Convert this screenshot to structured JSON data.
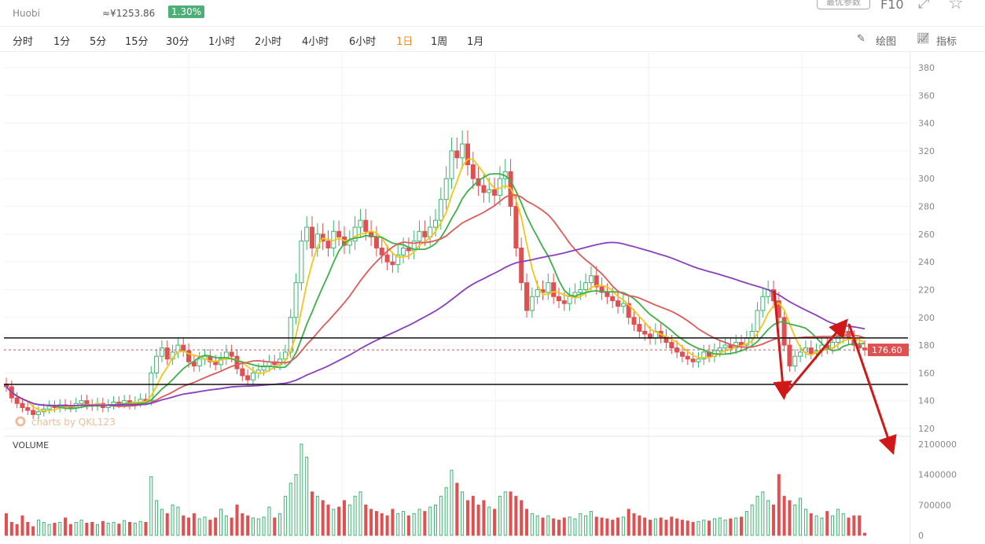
{
  "header": {
    "exchange": "Huobi",
    "cny_price": "≈¥1253.86",
    "change": "1.30%",
    "optimal_params": "最优参数",
    "f10": "F10"
  },
  "toolbar": {
    "tabs": [
      "分时",
      "1分",
      "5分",
      "15分",
      "30分",
      "1小时",
      "2小时",
      "4小时",
      "6小时",
      "1日",
      "1周",
      "1月"
    ],
    "active": "1日",
    "draw": "绘图",
    "indicator": "指标"
  },
  "chart": {
    "watermark": "charts by QKL123",
    "volume_label": "VOLUME",
    "last_price": "176.60",
    "price_ticks": [
      120,
      140,
      160,
      180,
      200,
      220,
      240,
      260,
      280,
      300,
      320,
      340,
      360,
      380
    ],
    "volume_ticks": [
      "0",
      "700000",
      "1400000",
      "2100000"
    ],
    "colors": {
      "up": "#3cb371",
      "down": "#e05050",
      "ma5": "#f5c518",
      "ma10": "#3cb04a",
      "ma20": "#e05a5a",
      "ma60": "#8a3fc0",
      "annotation": "#d01818"
    },
    "support_resistance": [
      185.2,
      151.7
    ],
    "closes": [
      150,
      142,
      138,
      135,
      133,
      130,
      132,
      134,
      136,
      135,
      137,
      136,
      135,
      138,
      140,
      137,
      136,
      138,
      135,
      137,
      139,
      138,
      140,
      137,
      139,
      141,
      140,
      160,
      172,
      178,
      170,
      175,
      180,
      176,
      168,
      165,
      170,
      172,
      168,
      166,
      170,
      175,
      172,
      163,
      158,
      155,
      160,
      162,
      165,
      168,
      166,
      170,
      175,
      200,
      225,
      255,
      265,
      250,
      260,
      255,
      250,
      262,
      258,
      252,
      255,
      265,
      270,
      262,
      258,
      250,
      245,
      240,
      238,
      245,
      250,
      248,
      255,
      262,
      258,
      265,
      270,
      285,
      300,
      320,
      315,
      325,
      310,
      300,
      295,
      290,
      292,
      288,
      300,
      305,
      280,
      250,
      225,
      205,
      215,
      220,
      218,
      225,
      215,
      212,
      210,
      215,
      218,
      220,
      225,
      230,
      222,
      218,
      215,
      212,
      208,
      210,
      200,
      195,
      190,
      188,
      185,
      190,
      186,
      182,
      178,
      175,
      172,
      170,
      168,
      170,
      175,
      172,
      176,
      178,
      180,
      178,
      182,
      180,
      185,
      190,
      205,
      215,
      220,
      212,
      200,
      180,
      165,
      172,
      175,
      178,
      174,
      176,
      180,
      178,
      182,
      186,
      190,
      185,
      180,
      178,
      176.6
    ],
    "volumes": [
      500000,
      300000,
      250000,
      450000,
      300000,
      200000,
      350000,
      300000,
      250000,
      280000,
      300000,
      400000,
      250000,
      300000,
      350000,
      280000,
      300000,
      250000,
      320000,
      280000,
      300000,
      260000,
      340000,
      300000,
      280000,
      320000,
      300000,
      1350000,
      800000,
      600000,
      500000,
      700000,
      650000,
      450000,
      400000,
      500000,
      380000,
      420000,
      350000,
      400000,
      600000,
      450000,
      400000,
      700000,
      500000,
      450000,
      400000,
      380000,
      420000,
      650000,
      400000,
      500000,
      900000,
      1200000,
      1400000,
      2100000,
      1800000,
      1000000,
      900000,
      800000,
      700000,
      600000,
      650000,
      800000,
      700000,
      900000,
      1000000,
      700000,
      600000,
      550000,
      500000,
      450000,
      600000,
      500000,
      550000,
      450000,
      500000,
      600000,
      550000,
      650000,
      700000,
      900000,
      1100000,
      1500000,
      1200000,
      1000000,
      800000,
      900000,
      700000,
      800000,
      650000,
      600000,
      900000,
      1000000,
      1000000,
      900000,
      800000,
      600000,
      500000,
      450000,
      400000,
      450000,
      380000,
      350000,
      400000,
      420000,
      380000,
      500000,
      450000,
      550000,
      420000,
      400000,
      380000,
      350000,
      400000,
      420000,
      600000,
      500000,
      450000,
      400000,
      350000,
      380000,
      400000,
      350000,
      420000,
      380000,
      350000,
      330000,
      300000,
      320000,
      350000,
      330000,
      380000,
      400000,
      350000,
      380000,
      400000,
      420000,
      550000,
      700000,
      900000,
      1000000,
      800000,
      700000,
      1400000,
      900000,
      800000,
      700000,
      850000,
      600000,
      500000,
      450000,
      400000,
      550000,
      450000,
      600000,
      500000,
      400000,
      450000,
      450000,
      50000
    ]
  }
}
